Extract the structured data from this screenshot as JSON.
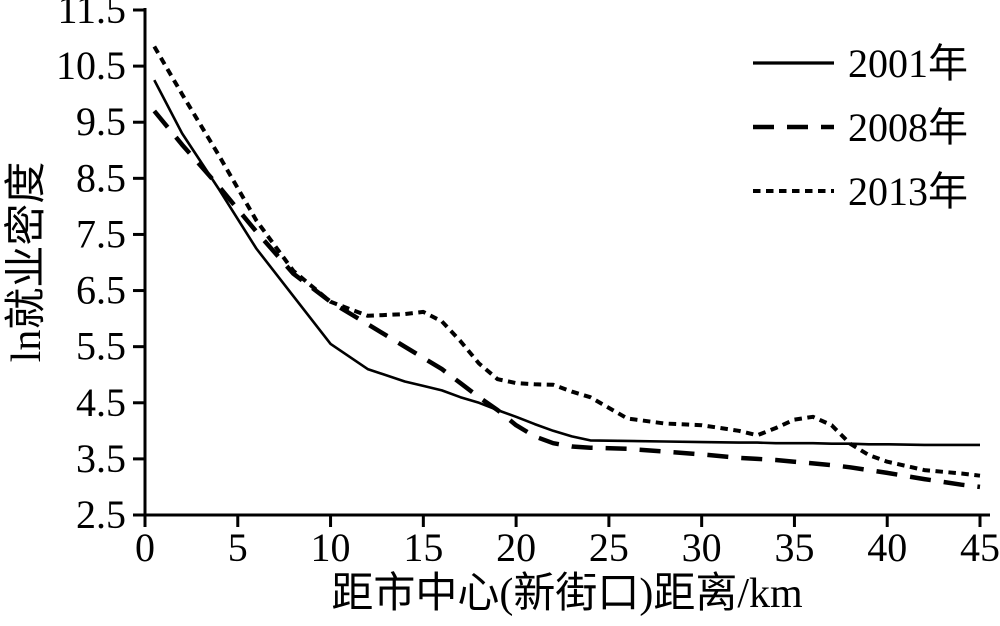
{
  "chart_data": {
    "type": "line",
    "title": "",
    "xlabel": "距市中心(新街口)距离/km",
    "ylabel": "ln就业密度",
    "xlim": [
      0,
      45
    ],
    "ylim": [
      2.5,
      11.5
    ],
    "x_ticks": [
      0,
      5,
      10,
      15,
      20,
      25,
      30,
      35,
      40,
      45
    ],
    "y_ticks": [
      2.5,
      3.5,
      4.5,
      5.5,
      6.5,
      7.5,
      8.5,
      9.5,
      10.5,
      11.5
    ],
    "grid": false,
    "legend_position": "top-right",
    "x": [
      0.5,
      2,
      4,
      6,
      8,
      10,
      12,
      14,
      15,
      16,
      17,
      18,
      19,
      20,
      21,
      22,
      23,
      24,
      26,
      28,
      30,
      32,
      33,
      34,
      35,
      36,
      37,
      38,
      39,
      40,
      42,
      44,
      45
    ],
    "series": [
      {
        "name": "2001年",
        "style": "solid",
        "values": [
          10.25,
          9.3,
          8.3,
          7.25,
          6.4,
          5.55,
          5.1,
          4.88,
          4.8,
          4.72,
          4.6,
          4.5,
          4.37,
          4.25,
          4.12,
          4.0,
          3.9,
          3.83,
          3.82,
          3.81,
          3.8,
          3.79,
          3.79,
          3.78,
          3.78,
          3.78,
          3.77,
          3.77,
          3.76,
          3.76,
          3.75,
          3.75,
          3.75
        ]
      },
      {
        "name": "2008年",
        "style": "long-dash",
        "values": [
          9.7,
          9.1,
          8.35,
          7.55,
          6.8,
          6.3,
          5.9,
          5.5,
          5.3,
          5.1,
          4.85,
          4.6,
          4.37,
          4.1,
          3.9,
          3.78,
          3.72,
          3.7,
          3.68,
          3.63,
          3.58,
          3.52,
          3.5,
          3.48,
          3.45,
          3.42,
          3.39,
          3.35,
          3.3,
          3.25,
          3.14,
          3.04,
          3.0
        ]
      },
      {
        "name": "2013年",
        "style": "short-dash",
        "values": [
          10.85,
          10.0,
          8.9,
          7.75,
          6.85,
          6.3,
          6.05,
          6.08,
          6.12,
          5.95,
          5.6,
          5.2,
          4.92,
          4.85,
          4.83,
          4.82,
          4.7,
          4.6,
          4.22,
          4.13,
          4.1,
          4.0,
          3.92,
          4.05,
          4.2,
          4.25,
          4.1,
          3.77,
          3.57,
          3.45,
          3.3,
          3.24,
          3.2
        ]
      }
    ]
  },
  "colors": {
    "line": "#000000",
    "background": "#ffffff"
  }
}
